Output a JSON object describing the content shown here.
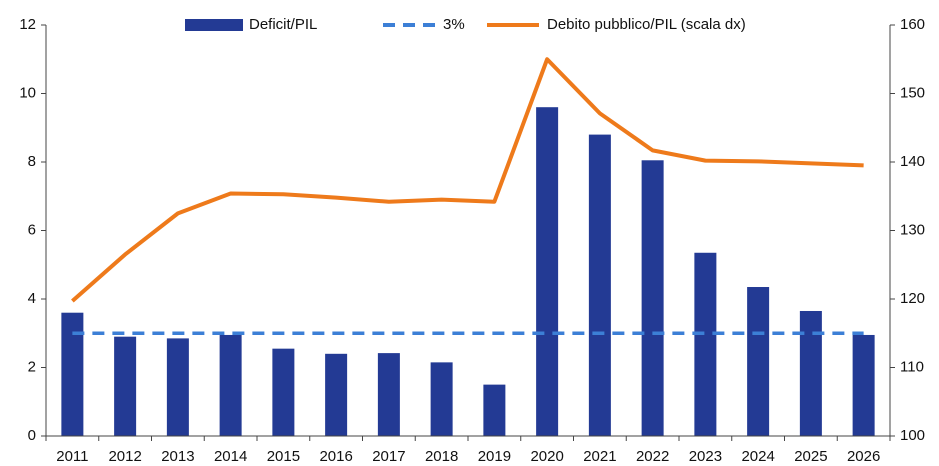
{
  "chart_data": {
    "type": "bar_line",
    "categories": [
      "2011",
      "2012",
      "2013",
      "2014",
      "2015",
      "2016",
      "2017",
      "2018",
      "2019",
      "2020",
      "2021",
      "2022",
      "2023",
      "2024",
      "2025",
      "2026"
    ],
    "series": [
      {
        "name": "Deficit/PIL",
        "type": "bar",
        "color": "#233a94",
        "axis": "y",
        "values": [
          3.6,
          2.9,
          2.85,
          2.95,
          2.55,
          2.4,
          2.42,
          2.15,
          1.5,
          9.6,
          8.8,
          8.05,
          5.35,
          4.35,
          3.65,
          2.95
        ]
      },
      {
        "name": "3%",
        "type": "line",
        "dashed": true,
        "color": "#3c7fd6",
        "axis": "y",
        "values": [
          3,
          3,
          3,
          3,
          3,
          3,
          3,
          3,
          3,
          3,
          3,
          3,
          3,
          3,
          3,
          3
        ]
      },
      {
        "name": "Debito pubblico/PIL (scala dx)",
        "type": "line",
        "color": "#ee7a1b",
        "axis": "y2",
        "values": [
          119.7,
          126.5,
          132.5,
          135.4,
          135.3,
          134.8,
          134.2,
          134.5,
          134.2,
          155,
          147.1,
          141.7,
          140.2,
          140.1,
          139.8,
          139.5
        ]
      }
    ],
    "ylim": [
      0,
      12
    ],
    "yticks": [
      0,
      2,
      4,
      6,
      8,
      10,
      12
    ],
    "y2lim": [
      100,
      160
    ],
    "y2ticks": [
      100,
      110,
      120,
      130,
      140,
      150,
      160
    ],
    "legend": "top"
  }
}
